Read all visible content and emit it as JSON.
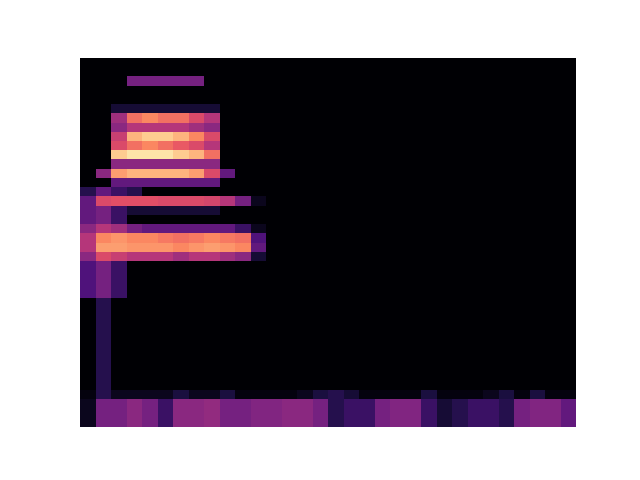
{
  "chart_data": {
    "type": "heatmap",
    "tick_labels": false,
    "grid": false,
    "xlim": [
      -0.5,
      31.5
    ],
    "ylim": [
      -0.5,
      39.5
    ],
    "zlim": [
      0,
      1
    ],
    "z": [
      [
        0.05,
        0.35,
        0.35,
        0.4,
        0.35,
        0.2,
        0.4,
        0.4,
        0.42,
        0.35,
        0.35,
        0.38,
        0.38,
        0.4,
        0.4,
        0.35,
        0.15,
        0.2,
        0.2,
        0.35,
        0.38,
        0.38,
        0.2,
        0.1,
        0.15,
        0.2,
        0.2,
        0.15,
        0.35,
        0.38,
        0.38,
        0.3
      ],
      [
        0.05,
        0.35,
        0.35,
        0.4,
        0.35,
        0.2,
        0.4,
        0.4,
        0.42,
        0.35,
        0.35,
        0.38,
        0.38,
        0.4,
        0.4,
        0.35,
        0.15,
        0.2,
        0.2,
        0.35,
        0.38,
        0.38,
        0.2,
        0.1,
        0.15,
        0.2,
        0.2,
        0.15,
        0.35,
        0.38,
        0.38,
        0.3
      ],
      [
        0.05,
        0.35,
        0.35,
        0.4,
        0.35,
        0.2,
        0.4,
        0.4,
        0.42,
        0.35,
        0.35,
        0.38,
        0.38,
        0.4,
        0.4,
        0.35,
        0.15,
        0.2,
        0.2,
        0.35,
        0.38,
        0.38,
        0.2,
        0.1,
        0.15,
        0.2,
        0.2,
        0.15,
        0.35,
        0.38,
        0.38,
        0.3
      ],
      [
        0.02,
        0.15,
        0.05,
        0.05,
        0.05,
        0.05,
        0.12,
        0.05,
        0.05,
        0.12,
        0.02,
        0.02,
        0.02,
        0.02,
        0.05,
        0.12,
        0.15,
        0.1,
        0.02,
        0.02,
        0.02,
        0.02,
        0.12,
        0.02,
        0.02,
        0.02,
        0.05,
        0.12,
        0.02,
        0.12,
        0.02,
        0.02
      ],
      [
        0,
        0.15,
        0,
        0,
        0,
        0,
        0,
        0,
        0,
        0,
        0,
        0,
        0,
        0,
        0,
        0,
        0,
        0,
        0,
        0,
        0,
        0,
        0,
        0,
        0,
        0,
        0,
        0,
        0,
        0,
        0,
        0
      ],
      [
        0,
        0.15,
        0,
        0,
        0,
        0,
        0,
        0,
        0,
        0,
        0,
        0,
        0,
        0,
        0,
        0,
        0,
        0,
        0,
        0,
        0,
        0,
        0,
        0,
        0,
        0,
        0,
        0,
        0,
        0,
        0,
        0
      ],
      [
        0,
        0.15,
        0,
        0,
        0,
        0,
        0,
        0,
        0,
        0,
        0,
        0,
        0,
        0,
        0,
        0,
        0,
        0,
        0,
        0,
        0,
        0,
        0,
        0,
        0,
        0,
        0,
        0,
        0,
        0,
        0,
        0
      ],
      [
        0,
        0.15,
        0,
        0,
        0,
        0,
        0,
        0,
        0,
        0,
        0,
        0,
        0,
        0,
        0,
        0,
        0,
        0,
        0,
        0,
        0,
        0,
        0,
        0,
        0,
        0,
        0,
        0,
        0,
        0,
        0,
        0
      ],
      [
        0,
        0.15,
        0,
        0,
        0,
        0,
        0,
        0,
        0,
        0,
        0,
        0,
        0,
        0,
        0,
        0,
        0,
        0,
        0,
        0,
        0,
        0,
        0,
        0,
        0,
        0,
        0,
        0,
        0,
        0,
        0,
        0
      ],
      [
        0,
        0.15,
        0,
        0,
        0,
        0,
        0,
        0,
        0,
        0,
        0,
        0,
        0,
        0,
        0,
        0,
        0,
        0,
        0,
        0,
        0,
        0,
        0,
        0,
        0,
        0,
        0,
        0,
        0,
        0,
        0,
        0
      ],
      [
        0,
        0.15,
        0,
        0,
        0,
        0,
        0,
        0,
        0,
        0,
        0,
        0,
        0,
        0,
        0,
        0,
        0,
        0,
        0,
        0,
        0,
        0,
        0,
        0,
        0,
        0,
        0,
        0,
        0,
        0,
        0,
        0
      ],
      [
        0,
        0.15,
        0,
        0,
        0,
        0,
        0,
        0,
        0,
        0,
        0,
        0,
        0,
        0,
        0,
        0,
        0,
        0,
        0,
        0,
        0,
        0,
        0,
        0,
        0,
        0,
        0,
        0,
        0,
        0,
        0,
        0
      ],
      [
        0,
        0.15,
        0,
        0,
        0,
        0,
        0,
        0,
        0,
        0,
        0,
        0,
        0,
        0,
        0,
        0,
        0,
        0,
        0,
        0,
        0,
        0,
        0,
        0,
        0,
        0,
        0,
        0,
        0,
        0,
        0,
        0
      ],
      [
        0,
        0.15,
        0,
        0,
        0,
        0,
        0,
        0,
        0,
        0,
        0,
        0,
        0,
        0,
        0,
        0,
        0,
        0,
        0,
        0,
        0,
        0,
        0,
        0,
        0,
        0,
        0,
        0,
        0,
        0,
        0,
        0
      ],
      [
        0.25,
        0.35,
        0.2,
        0,
        0,
        0,
        0,
        0,
        0,
        0,
        0,
        0,
        0,
        0,
        0,
        0,
        0,
        0,
        0,
        0,
        0,
        0,
        0,
        0,
        0,
        0,
        0,
        0,
        0,
        0,
        0,
        0
      ],
      [
        0.25,
        0.35,
        0.2,
        0,
        0,
        0,
        0,
        0,
        0,
        0,
        0,
        0,
        0,
        0,
        0,
        0,
        0,
        0,
        0,
        0,
        0,
        0,
        0,
        0,
        0,
        0,
        0,
        0,
        0,
        0,
        0,
        0
      ],
      [
        0.25,
        0.35,
        0.2,
        0,
        0,
        0,
        0,
        0,
        0,
        0,
        0,
        0,
        0,
        0,
        0,
        0,
        0,
        0,
        0,
        0,
        0,
        0,
        0,
        0,
        0,
        0,
        0,
        0,
        0,
        0,
        0,
        0
      ],
      [
        0.25,
        0.35,
        0.2,
        0,
        0,
        0,
        0,
        0,
        0,
        0,
        0,
        0,
        0,
        0,
        0,
        0,
        0,
        0,
        0,
        0,
        0,
        0,
        0,
        0,
        0,
        0,
        0,
        0,
        0,
        0,
        0,
        0
      ],
      [
        0.4,
        0.6,
        0.55,
        0.5,
        0.5,
        0.5,
        0.45,
        0.5,
        0.5,
        0.45,
        0.4,
        0.1,
        0,
        0,
        0,
        0,
        0,
        0,
        0,
        0,
        0,
        0,
        0,
        0,
        0,
        0,
        0,
        0,
        0,
        0,
        0,
        0
      ],
      [
        0.5,
        0.8,
        0.8,
        0.78,
        0.78,
        0.78,
        0.75,
        0.78,
        0.8,
        0.78,
        0.75,
        0.3,
        0,
        0,
        0,
        0,
        0,
        0,
        0,
        0,
        0,
        0,
        0,
        0,
        0,
        0,
        0,
        0,
        0,
        0,
        0,
        0
      ],
      [
        0.5,
        0.75,
        0.78,
        0.75,
        0.75,
        0.72,
        0.7,
        0.72,
        0.75,
        0.72,
        0.7,
        0.25,
        0,
        0,
        0,
        0,
        0,
        0,
        0,
        0,
        0,
        0,
        0,
        0,
        0,
        0,
        0,
        0,
        0,
        0,
        0,
        0
      ],
      [
        0.4,
        0.5,
        0.45,
        0.35,
        0.3,
        0.3,
        0.3,
        0.3,
        0.3,
        0.3,
        0.2,
        0.05,
        0,
        0,
        0,
        0,
        0,
        0,
        0,
        0,
        0,
        0,
        0,
        0,
        0,
        0,
        0,
        0,
        0,
        0,
        0,
        0
      ],
      [
        0.3,
        0.35,
        0.2,
        0,
        0,
        0,
        0,
        0,
        0,
        0,
        0,
        0,
        0,
        0,
        0,
        0,
        0,
        0,
        0,
        0,
        0,
        0,
        0,
        0,
        0,
        0,
        0,
        0,
        0,
        0,
        0,
        0
      ],
      [
        0.3,
        0.35,
        0.2,
        0.1,
        0.1,
        0.1,
        0.1,
        0.1,
        0.1,
        0,
        0,
        0,
        0,
        0,
        0,
        0,
        0,
        0,
        0,
        0,
        0,
        0,
        0,
        0,
        0,
        0,
        0,
        0,
        0,
        0,
        0,
        0
      ],
      [
        0.3,
        0.6,
        0.62,
        0.62,
        0.62,
        0.6,
        0.6,
        0.6,
        0.58,
        0.5,
        0.35,
        0.05,
        0,
        0,
        0,
        0,
        0,
        0,
        0,
        0,
        0,
        0,
        0,
        0,
        0,
        0,
        0,
        0,
        0,
        0,
        0,
        0
      ],
      [
        0.15,
        0.3,
        0.2,
        0.15,
        0,
        0,
        0,
        0,
        0,
        0,
        0,
        0,
        0,
        0,
        0,
        0,
        0,
        0,
        0,
        0,
        0,
        0,
        0,
        0,
        0,
        0,
        0,
        0,
        0,
        0,
        0,
        0
      ],
      [
        0,
        0,
        0.3,
        0.3,
        0.3,
        0.3,
        0.3,
        0.3,
        0.3,
        0,
        0,
        0,
        0,
        0,
        0,
        0,
        0,
        0,
        0,
        0,
        0,
        0,
        0,
        0,
        0,
        0,
        0,
        0,
        0,
        0,
        0,
        0
      ],
      [
        0,
        0.4,
        0.8,
        0.85,
        0.85,
        0.85,
        0.85,
        0.8,
        0.6,
        0.3,
        0,
        0,
        0,
        0,
        0,
        0,
        0,
        0,
        0,
        0,
        0,
        0,
        0,
        0,
        0,
        0,
        0,
        0,
        0,
        0,
        0,
        0
      ],
      [
        0,
        0,
        0.4,
        0.4,
        0.4,
        0.4,
        0.4,
        0.4,
        0.4,
        0,
        0,
        0,
        0,
        0,
        0,
        0,
        0,
        0,
        0,
        0,
        0,
        0,
        0,
        0,
        0,
        0,
        0,
        0,
        0,
        0,
        0,
        0
      ],
      [
        0,
        0,
        0.9,
        0.95,
        0.95,
        0.95,
        0.9,
        0.85,
        0.7,
        0,
        0,
        0,
        0,
        0,
        0,
        0,
        0,
        0,
        0,
        0,
        0,
        0,
        0,
        0,
        0,
        0,
        0,
        0,
        0,
        0,
        0,
        0
      ],
      [
        0,
        0,
        0.6,
        0.7,
        0.75,
        0.7,
        0.65,
        0.6,
        0.5,
        0,
        0,
        0,
        0,
        0,
        0,
        0,
        0,
        0,
        0,
        0,
        0,
        0,
        0,
        0,
        0,
        0,
        0,
        0,
        0,
        0,
        0,
        0
      ],
      [
        0,
        0,
        0.55,
        0.85,
        0.9,
        0.9,
        0.85,
        0.75,
        0.6,
        0,
        0,
        0,
        0,
        0,
        0,
        0,
        0,
        0,
        0,
        0,
        0,
        0,
        0,
        0,
        0,
        0,
        0,
        0,
        0,
        0,
        0,
        0
      ],
      [
        0,
        0,
        0.4,
        0.5,
        0.5,
        0.5,
        0.5,
        0.45,
        0.4,
        0,
        0,
        0,
        0,
        0,
        0,
        0,
        0,
        0,
        0,
        0,
        0,
        0,
        0,
        0,
        0,
        0,
        0,
        0,
        0,
        0,
        0,
        0
      ],
      [
        0,
        0,
        0.45,
        0.7,
        0.75,
        0.7,
        0.7,
        0.6,
        0.5,
        0,
        0,
        0,
        0,
        0,
        0,
        0,
        0,
        0,
        0,
        0,
        0,
        0,
        0,
        0,
        0,
        0,
        0,
        0,
        0,
        0,
        0,
        0
      ],
      [
        0,
        0,
        0.1,
        0.1,
        0.1,
        0.1,
        0.1,
        0.1,
        0.1,
        0,
        0,
        0,
        0,
        0,
        0,
        0,
        0,
        0,
        0,
        0,
        0,
        0,
        0,
        0,
        0,
        0,
        0,
        0,
        0,
        0,
        0,
        0
      ],
      [
        0,
        0,
        0,
        0,
        0,
        0,
        0,
        0,
        0,
        0,
        0,
        0,
        0,
        0,
        0,
        0,
        0,
        0,
        0,
        0,
        0,
        0,
        0,
        0,
        0,
        0,
        0,
        0,
        0,
        0,
        0,
        0
      ],
      [
        0,
        0,
        0,
        0,
        0,
        0,
        0,
        0,
        0,
        0,
        0,
        0,
        0,
        0,
        0,
        0,
        0,
        0,
        0,
        0,
        0,
        0,
        0,
        0,
        0,
        0,
        0,
        0,
        0,
        0,
        0,
        0
      ],
      [
        0,
        0,
        0,
        0.35,
        0.35,
        0.35,
        0.35,
        0.35,
        0,
        0,
        0,
        0,
        0,
        0,
        0,
        0,
        0,
        0,
        0,
        0,
        0,
        0,
        0,
        0,
        0,
        0,
        0,
        0,
        0,
        0,
        0,
        0
      ],
      [
        0,
        0,
        0,
        0,
        0,
        0,
        0,
        0,
        0,
        0,
        0,
        0,
        0,
        0,
        0,
        0,
        0,
        0,
        0,
        0,
        0,
        0,
        0,
        0,
        0,
        0,
        0,
        0,
        0,
        0,
        0,
        0
      ],
      [
        0,
        0,
        0,
        0,
        0,
        0,
        0,
        0,
        0,
        0,
        0,
        0,
        0,
        0,
        0,
        0,
        0,
        0,
        0,
        0,
        0,
        0,
        0,
        0,
        0,
        0,
        0,
        0,
        0,
        0,
        0,
        0
      ]
    ]
  }
}
